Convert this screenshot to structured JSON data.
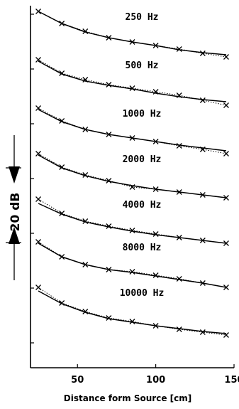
{
  "chart_data": {
    "type": "line",
    "xlabel": "Distance form Source [cm]",
    "x_ticks": [
      50,
      100,
      150
    ],
    "xlim": [
      20,
      150
    ],
    "scale_bar_label": "20 dB",
    "x": [
      25,
      40,
      55,
      70,
      85,
      100,
      115,
      130,
      145
    ],
    "series": [
      {
        "name": "250 Hz",
        "measured": [
          16,
          33,
          44,
          53,
          59,
          64,
          69,
          75,
          80
        ],
        "fit": [
          16,
          33,
          45,
          53,
          59,
          64,
          70,
          74,
          77
        ]
      },
      {
        "name": "500 Hz",
        "measured": [
          84,
          103,
          112,
          119,
          124,
          129,
          134,
          141,
          148
        ],
        "fit": [
          86,
          104,
          114,
          120,
          125,
          131,
          136,
          140,
          143
        ]
      },
      {
        "name": "1000 Hz",
        "measured": [
          152,
          170,
          182,
          189,
          194,
          199,
          205,
          210,
          216
        ],
        "fit": [
          154,
          171,
          182,
          189,
          194,
          199,
          204,
          208,
          212
        ]
      },
      {
        "name": "2000 Hz",
        "measured": [
          216,
          235,
          246,
          254,
          263,
          266,
          270,
          274,
          278
        ],
        "fit": [
          218,
          236,
          247,
          255,
          261,
          266,
          270,
          274,
          278
        ]
      },
      {
        "name": "4000 Hz",
        "measured": [
          280,
          300,
          311,
          318,
          324,
          329,
          334,
          338,
          342
        ],
        "fit": [
          286,
          301,
          312,
          319,
          325,
          330,
          334,
          338,
          342
        ]
      },
      {
        "name": "8000 Hz",
        "measured": [
          340,
          361,
          372,
          379,
          382,
          387,
          392,
          398,
          404
        ],
        "fit": [
          342,
          361,
          372,
          379,
          383,
          388,
          393,
          398,
          404
        ]
      },
      {
        "name": "10000 Hz",
        "measured": [
          404,
          426,
          438,
          447,
          452,
          458,
          463,
          467,
          471
        ],
        "fit": [
          409,
          427,
          439,
          448,
          453,
          458,
          462,
          466,
          469
        ]
      }
    ]
  }
}
